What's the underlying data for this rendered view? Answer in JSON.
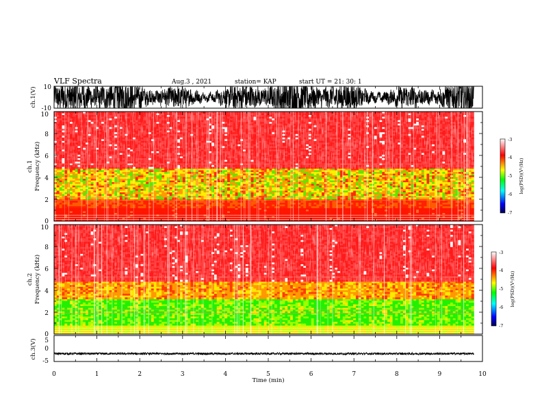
{
  "header": {
    "title": "VLF Spectra",
    "date": "Aug.3 , 2021",
    "station": "station= KAP",
    "start_ut": "start UT = 21: 30: 1"
  },
  "colorbar": {
    "label": "log(PSD)(V²/Hz)",
    "ticks": [
      "-3",
      "-4",
      "-5",
      "-6",
      "-7"
    ],
    "range": [
      -7,
      -3
    ],
    "colors": [
      "#00004f",
      "#0000ff",
      "#00ffff",
      "#00ff00",
      "#ffff00",
      "#ff0000",
      "#ffffff"
    ]
  },
  "chart_data": [
    {
      "type": "line",
      "panel": "ch1-waveform",
      "ylabel": "ch.1(V)",
      "ylim": [
        -10,
        10
      ],
      "yticks": [
        "10",
        "-10"
      ],
      "xlim": [
        0,
        10
      ],
      "description_series": {
        "name": "ch.1",
        "behavior": "dense noisy waveform oscillating roughly between -10 and 10 V over 0-9.8 min"
      }
    },
    {
      "type": "heatmap",
      "panel": "ch1-spectrogram",
      "ylabel": "ch.1\nFrequency (kHz)",
      "ylim": [
        0,
        10
      ],
      "yticks": [
        "0",
        "2",
        "4",
        "6",
        "8",
        "10"
      ],
      "xlim": [
        0,
        10
      ],
      "data_extent_min": 9.8,
      "bands": [
        {
          "f_range": [
            0,
            1.2
          ],
          "level": "red with white horizontal lines"
        },
        {
          "f_range": [
            1.2,
            2.0
          ],
          "level": "red-orange"
        },
        {
          "f_range": [
            2.0,
            4.8
          ],
          "level": "yellow-green patches with red"
        },
        {
          "f_range": [
            4.8,
            10
          ],
          "level": "red speckled with white"
        }
      ]
    },
    {
      "type": "heatmap",
      "panel": "ch2-spectrogram",
      "ylabel": "ch.2\nFrequency (kHz)",
      "ylim": [
        0,
        10
      ],
      "yticks": [
        "0",
        "2",
        "4",
        "6",
        "8",
        "10"
      ],
      "xlim": [
        0,
        10
      ],
      "data_extent_min": 9.8,
      "bands": [
        {
          "f_range": [
            0,
            0.8
          ],
          "level": "yellow-green"
        },
        {
          "f_range": [
            0.8,
            3.2
          ],
          "level": "green with yellow"
        },
        {
          "f_range": [
            3.2,
            4.8
          ],
          "level": "yellow-orange"
        },
        {
          "f_range": [
            4.8,
            10
          ],
          "level": "red speckled with white"
        }
      ]
    },
    {
      "type": "line",
      "panel": "ch3-waveform",
      "ylabel": "ch.3(V)",
      "ylim": [
        -5,
        5
      ],
      "yticks": [
        "5",
        "0",
        "-5"
      ],
      "xlim": [
        0,
        10
      ],
      "xlabel": "Time (min)",
      "xticks": [
        "0",
        "1",
        "2",
        "3",
        "4",
        "5",
        "6",
        "7",
        "8",
        "9",
        "10"
      ],
      "description_series": {
        "name": "ch.3",
        "behavior": "narrow band around -2 V, roughly -2.4 to -1.6 V over 0-9.8 min"
      }
    }
  ]
}
